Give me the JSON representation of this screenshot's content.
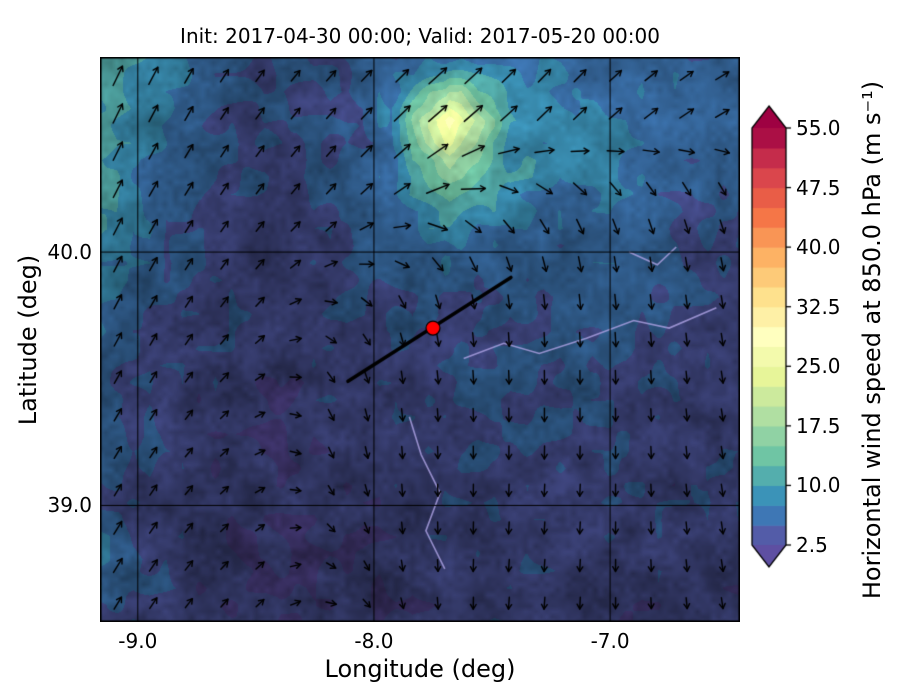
{
  "chart_data": {
    "type": "heatmap",
    "title": "Init: 2017-04-30 00:00; Valid: 2017-05-20 00:00",
    "init_time": "2017-04-30 00:00",
    "valid_time": "2017-05-20 00:00",
    "xlabel": "Longitude (deg)",
    "ylabel": "Latitude (deg)",
    "xlim": [
      -9.16,
      -6.45
    ],
    "ylim": [
      38.54,
      40.77
    ],
    "x_ticks": [
      -9.0,
      -8.0,
      -7.0
    ],
    "x_tick_labels": [
      "-9.0",
      "-8.0",
      "-7.0"
    ],
    "y_ticks": [
      39.0,
      40.0
    ],
    "y_tick_labels": [
      "39.0",
      "40.0"
    ],
    "grid": true,
    "colorbar": {
      "label": "Horizontal wind speed at 850.0 hPa (m s⁻¹)",
      "ticks": [
        2.5,
        10.0,
        17.5,
        25.0,
        32.5,
        40.0,
        47.5,
        55.0
      ],
      "tick_labels": [
        "2.5",
        "10.0",
        "17.5",
        "25.0",
        "32.5",
        "40.0",
        "47.5",
        "55.0"
      ],
      "vmin": 2.5,
      "vmax": 55.0,
      "level_step": 2.5,
      "extend": "both",
      "colormap_name": "Spectral_r",
      "colormap_colors": [
        "#5e4fa2",
        "#3288bd",
        "#66c2a5",
        "#abdda4",
        "#e6f598",
        "#ffffbf",
        "#fee08b",
        "#fdae61",
        "#f46d43",
        "#d53e4f",
        "#9e0142"
      ]
    },
    "wind_speed_grid_ms": [
      [
        11,
        9,
        6,
        5,
        5,
        6,
        7,
        7,
        7,
        6,
        6,
        6
      ],
      [
        11,
        8,
        5,
        5,
        5,
        7,
        27,
        11,
        8,
        7,
        7,
        6
      ],
      [
        10,
        7,
        5,
        4,
        5,
        7,
        15,
        9,
        8,
        7,
        6,
        5
      ],
      [
        9,
        6,
        4,
        4,
        5,
        6,
        8,
        6,
        6,
        6,
        5,
        5
      ],
      [
        7,
        5,
        4,
        4,
        4,
        5,
        5,
        5,
        6,
        6,
        5,
        4
      ],
      [
        6,
        4,
        4,
        3,
        4,
        4,
        5,
        5,
        5,
        5,
        4,
        4
      ],
      [
        6,
        4,
        3,
        3,
        4,
        4,
        4,
        5,
        5,
        4,
        4,
        4
      ],
      [
        5,
        4,
        3,
        3,
        3,
        4,
        4,
        4,
        4,
        4,
        4,
        4
      ],
      [
        8,
        5,
        3,
        3,
        3,
        3,
        4,
        4,
        4,
        4,
        4,
        4
      ],
      [
        5,
        4,
        3,
        3,
        3,
        3,
        4,
        4,
        4,
        3,
        3,
        3
      ]
    ],
    "wind_dir_deg_math": [
      [
        65,
        62,
        58,
        52,
        48,
        45,
        42,
        45,
        48,
        42,
        36,
        30
      ],
      [
        65,
        62,
        58,
        52,
        48,
        45,
        40,
        42,
        44,
        40,
        34,
        28
      ],
      [
        64,
        60,
        57,
        52,
        48,
        42,
        25,
        -15,
        -35,
        -48,
        -55,
        -58
      ],
      [
        64,
        60,
        55,
        48,
        38,
        5,
        -50,
        -65,
        -75,
        -80,
        -80,
        -78
      ],
      [
        63,
        60,
        54,
        44,
        -15,
        -65,
        -80,
        -85,
        -85,
        -85,
        -83,
        -80
      ],
      [
        62,
        58,
        50,
        30,
        -55,
        -80,
        -85,
        -88,
        -90,
        -88,
        -85,
        -80
      ],
      [
        60,
        56,
        46,
        15,
        -70,
        -85,
        -88,
        -90,
        -90,
        -90,
        -85,
        -80
      ],
      [
        60,
        55,
        45,
        25,
        -60,
        -85,
        -90,
        -92,
        -94,
        -90,
        -85,
        -80
      ],
      [
        60,
        55,
        48,
        38,
        -35,
        -80,
        -90,
        -94,
        -94,
        -90,
        -85,
        -80
      ],
      [
        60,
        56,
        50,
        42,
        -5,
        -70,
        -88,
        -94,
        -94,
        -90,
        -85,
        -80
      ]
    ],
    "shade_grid": [
      [
        0.75,
        0.7,
        0.55,
        0.5,
        0.55,
        0.7,
        0.8,
        0.8,
        0.75,
        0.7,
        0.7,
        0.65
      ],
      [
        0.75,
        0.65,
        0.5,
        0.5,
        0.55,
        0.75,
        0.95,
        0.85,
        0.8,
        0.75,
        0.7,
        0.65
      ],
      [
        0.7,
        0.6,
        0.5,
        0.45,
        0.55,
        0.7,
        0.85,
        0.8,
        0.75,
        0.7,
        0.65,
        0.6
      ],
      [
        0.65,
        0.55,
        0.45,
        0.45,
        0.5,
        0.6,
        0.65,
        0.6,
        0.6,
        0.6,
        0.55,
        0.55
      ],
      [
        0.6,
        0.5,
        0.45,
        0.45,
        0.45,
        0.5,
        0.55,
        0.55,
        0.6,
        0.6,
        0.55,
        0.5
      ],
      [
        0.55,
        0.5,
        0.45,
        0.4,
        0.45,
        0.5,
        0.5,
        0.55,
        0.55,
        0.5,
        0.5,
        0.5
      ],
      [
        0.55,
        0.5,
        0.4,
        0.4,
        0.45,
        0.45,
        0.5,
        0.5,
        0.5,
        0.5,
        0.5,
        0.5
      ],
      [
        0.5,
        0.45,
        0.4,
        0.4,
        0.4,
        0.45,
        0.45,
        0.5,
        0.5,
        0.45,
        0.45,
        0.45
      ],
      [
        0.6,
        0.5,
        0.4,
        0.4,
        0.4,
        0.4,
        0.45,
        0.45,
        0.45,
        0.45,
        0.45,
        0.45
      ],
      [
        0.5,
        0.45,
        0.4,
        0.4,
        0.4,
        0.4,
        0.45,
        0.45,
        0.45,
        0.4,
        0.4,
        0.4
      ]
    ],
    "cross_section_line": {
      "from": [
        -8.11,
        39.49
      ],
      "to": [
        -7.42,
        39.9
      ],
      "color": "#000000",
      "width": 3.5
    },
    "marker": {
      "lon": -7.75,
      "lat": 39.7,
      "color": "#ff0000",
      "edge_color": "#000000",
      "radius_px": 7
    },
    "terrain_lines": [
      [
        [
          -7.62,
          39.58
        ],
        [
          -7.45,
          39.64
        ],
        [
          -7.3,
          39.6
        ],
        [
          -7.1,
          39.66
        ],
        [
          -6.9,
          39.73
        ],
        [
          -6.75,
          39.7
        ],
        [
          -6.55,
          39.78
        ]
      ],
      [
        [
          -7.85,
          39.35
        ],
        [
          -7.8,
          39.2
        ],
        [
          -7.72,
          39.05
        ],
        [
          -7.78,
          38.9
        ],
        [
          -7.7,
          38.75
        ]
      ],
      [
        [
          -6.92,
          40.0
        ],
        [
          -6.8,
          39.95
        ],
        [
          -6.72,
          40.02
        ]
      ]
    ],
    "terrain_line_color": "#aaa0e0",
    "arrow_color": "#000000",
    "gridline_color": "#000000",
    "legend_position": "none"
  }
}
